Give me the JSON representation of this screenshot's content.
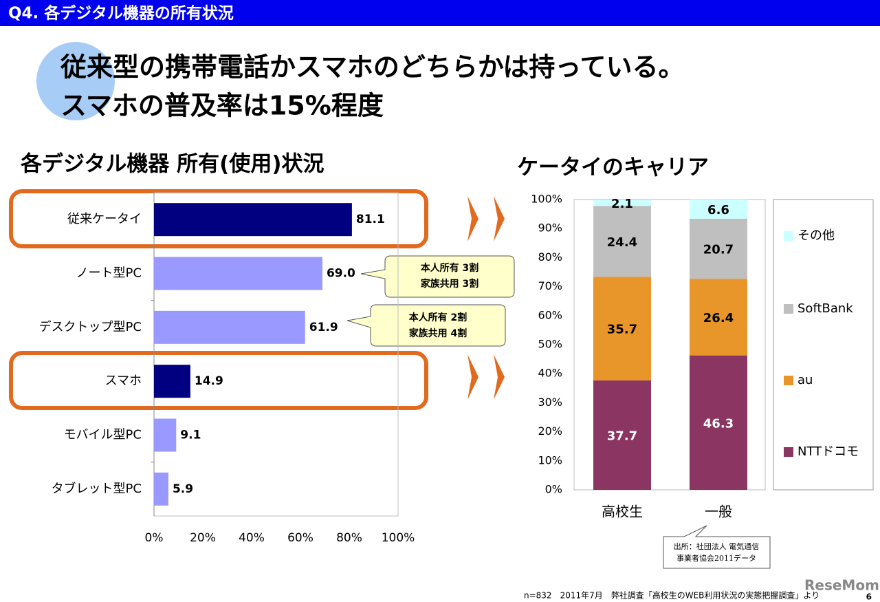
{
  "header": {
    "title": "Q4. 各デジタル機器の所有状況"
  },
  "headline": [
    "従来型の携帯電話かスマホのどちらかは持っている。",
    "スマホの普及率は15%程度"
  ],
  "chart_data": [
    {
      "type": "bar",
      "orientation": "horizontal",
      "title": "各デジタル機器 所有(使用)状況",
      "categories": [
        "従来ケータイ",
        "ノート型PC",
        "デスクトップ型PC",
        "スマホ",
        "モバイル型PC",
        "タブレット型PC"
      ],
      "values": [
        81.1,
        69.0,
        61.9,
        14.9,
        9.1,
        5.9
      ],
      "value_labels": [
        "81.1",
        "69.0",
        "61.9",
        "14.9",
        "9.1",
        "5.9"
      ],
      "colors": [
        "#000080",
        "#9999ff",
        "#9999ff",
        "#000080",
        "#9999ff",
        "#9999ff"
      ],
      "xlim": [
        0,
        100
      ],
      "xticks": [
        {
          "value": 0,
          "label": "0%"
        },
        {
          "value": 20,
          "label": "20%"
        },
        {
          "value": 40,
          "label": "40%"
        },
        {
          "value": 60,
          "label": "60%"
        },
        {
          "value": 80,
          "label": "80%"
        },
        {
          "value": 100,
          "label": "100%"
        }
      ]
    },
    {
      "type": "stacked_bar",
      "title": "ケータイのキャリア",
      "categories": [
        "高校生",
        "一般"
      ],
      "series": [
        {
          "name": "NTTドコモ",
          "color": "#8a3562",
          "values": [
            37.7,
            46.3
          ]
        },
        {
          "name": "au",
          "color": "#e8962a",
          "values": [
            35.7,
            26.4
          ]
        },
        {
          "name": "SoftBank",
          "color": "#bfbfbf",
          "values": [
            24.4,
            20.7
          ]
        },
        {
          "name": "その他",
          "color": "#ccffff",
          "values": [
            2.1,
            6.6
          ]
        }
      ],
      "ylim": [
        0,
        100
      ],
      "yticks": [
        {
          "value": 0,
          "label": "0%"
        },
        {
          "value": 10,
          "label": "10%"
        },
        {
          "value": 20,
          "label": "20%"
        },
        {
          "value": 30,
          "label": "30%"
        },
        {
          "value": 40,
          "label": "40%"
        },
        {
          "value": 50,
          "label": "50%"
        },
        {
          "value": 60,
          "label": "60%"
        },
        {
          "value": 70,
          "label": "70%"
        },
        {
          "value": 80,
          "label": "80%"
        },
        {
          "value": 90,
          "label": "90%"
        },
        {
          "value": 100,
          "label": "100%"
        }
      ]
    }
  ],
  "callouts": [
    {
      "lines": [
        "本人所有 3割",
        "家族共用 3割"
      ]
    },
    {
      "lines": [
        "本人所有 2割",
        "家族共用 4割"
      ]
    }
  ],
  "source_note": [
    "出所：社団法人 電気通信",
    "事業者協会2011データ"
  ],
  "footer": "n=832　2011年7月　弊社調査「高校生のWEB利用状況の実態把握調査」より",
  "page_number": "6",
  "watermark": "ReseMom"
}
